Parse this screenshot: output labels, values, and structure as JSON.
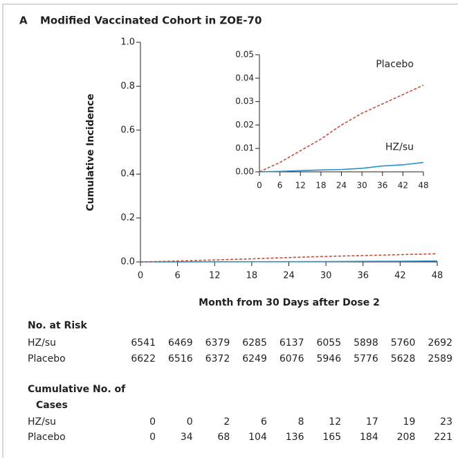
{
  "panel_label": "A",
  "chart_data": [
    {
      "type": "line",
      "title": "Modified Vaccinated Cohort in ZOE-70",
      "x_label": "Month from 30 Days after Dose 2",
      "y_label": "Cumulative Incidence",
      "x": [
        0,
        6,
        12,
        18,
        24,
        30,
        36,
        42,
        48
      ],
      "series": [
        {
          "color": "#2a8fc7",
          "dashed": false,
          "values": [
            0,
            0.0002,
            0.0005,
            0.0008,
            0.001,
            0.0015,
            0.0025,
            0.003,
            0.004
          ]
        },
        {
          "color": "#c8483a",
          "dashed": true,
          "values": [
            0,
            0.004,
            0.009,
            0.014,
            0.02,
            0.025,
            0.029,
            0.033,
            0.037
          ]
        }
      ],
      "xlim": [
        0,
        48
      ],
      "xticks": [
        0,
        6,
        12,
        18,
        24,
        30,
        36,
        42,
        48
      ],
      "ylim": [
        0,
        1
      ],
      "yticks": [
        {
          "value": 0,
          "label": "0.0"
        },
        0.2,
        0.4,
        0.6,
        0.8,
        {
          "value": 1,
          "label": "1.0"
        }
      ]
    },
    {
      "type": "line",
      "x": [
        0,
        6,
        12,
        18,
        24,
        30,
        36,
        42,
        48
      ],
      "series": [
        {
          "name": "HZ/su",
          "color": "#2a8fc7",
          "dashed": false,
          "values": [
            0,
            0.0002,
            0.0005,
            0.0008,
            0.001,
            0.0015,
            0.0025,
            0.003,
            0.004
          ]
        },
        {
          "name": "Placebo",
          "color": "#c8483a",
          "dashed": true,
          "values": [
            0,
            0.004,
            0.009,
            0.014,
            0.02,
            0.025,
            0.029,
            0.033,
            0.037
          ]
        }
      ],
      "xlim": [
        0,
        48
      ],
      "xticks": [
        0,
        6,
        12,
        18,
        24,
        30,
        36,
        42,
        48
      ],
      "ylim": [
        0,
        0.05
      ],
      "yticks": [
        {
          "value": 0,
          "label": "0.00"
        },
        {
          "value": 0.01,
          "label": "0.01"
        },
        {
          "value": 0.02,
          "label": "0.02"
        },
        {
          "value": 0.03,
          "label": "0.03"
        },
        {
          "value": 0.04,
          "label": "0.04"
        },
        {
          "value": 0.05,
          "label": "0.05"
        }
      ]
    }
  ],
  "risk_table": {
    "title": "No. at Risk",
    "rows": [
      {
        "label": "HZ/su",
        "values": [
          6541,
          6469,
          6379,
          6285,
          6137,
          6055,
          5898,
          5760,
          2692
        ]
      },
      {
        "label": "Placebo",
        "values": [
          6622,
          6516,
          6372,
          6249,
          6076,
          5946,
          5776,
          5628,
          2589
        ]
      }
    ]
  },
  "cases_table": {
    "title": "Cumulative No. of Cases",
    "rows": [
      {
        "label": "HZ/su",
        "values": [
          0,
          0,
          2,
          6,
          8,
          12,
          17,
          19,
          23
        ]
      },
      {
        "label": "Placebo",
        "values": [
          0,
          34,
          68,
          104,
          136,
          165,
          184,
          208,
          221
        ]
      }
    ]
  }
}
